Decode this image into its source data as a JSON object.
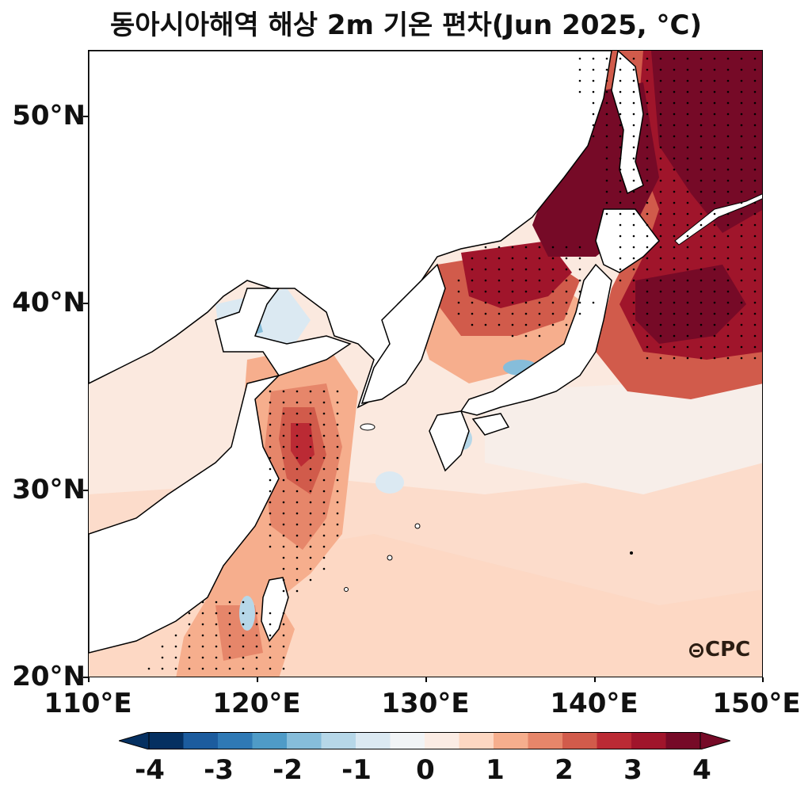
{
  "title": "동아시아해역 해상 2m 기온 편차(Jun 2025, °C)",
  "logo_text": "CPC",
  "logo_icon": "cpc-globe-icon",
  "map": {
    "lon_range": [
      110,
      150
    ],
    "lat_range": [
      20,
      53.5
    ],
    "x_ticks": [
      "110°E",
      "120°E",
      "130°E",
      "140°E",
      "150°E"
    ],
    "y_ticks": [
      "20°N",
      "30°N",
      "40°N",
      "50°N"
    ],
    "stippling": "significant anomaly dots",
    "land_color": "#ffffff",
    "coastline_color": "#000000"
  },
  "colorbar": {
    "ticks": [
      "-4",
      "-3",
      "-2",
      "-1",
      "0",
      "1",
      "2",
      "3",
      "4"
    ],
    "levels": [
      -4,
      -3.5,
      -3,
      -2.5,
      -2,
      -1.5,
      -1,
      -0.5,
      0,
      0.5,
      1,
      1.5,
      2,
      2.5,
      3,
      3.5,
      4
    ],
    "colors": [
      "#053061",
      "#1c5c9e",
      "#2f79b5",
      "#4f9bc7",
      "#86bdda",
      "#b6d7e8",
      "#dbe9f2",
      "#f1f4f6",
      "#fbece4",
      "#fdd7c2",
      "#f6ae8d",
      "#e6866a",
      "#d15b4b",
      "#bb2a34",
      "#a0152b",
      "#760a27"
    ],
    "extend": "both"
  }
}
